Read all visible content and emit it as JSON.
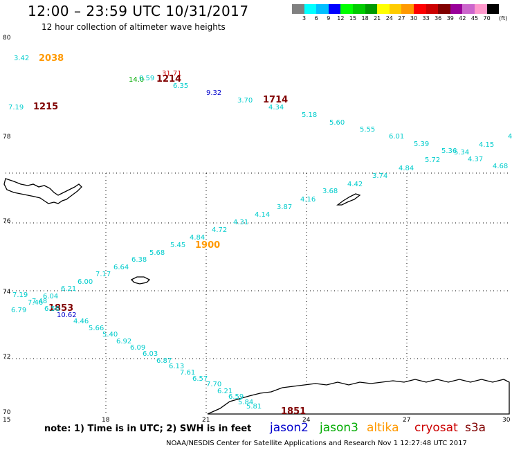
{
  "header": {
    "title": "12:00 – 23:59 UTC 10/31/2017",
    "subtitle": "12 hour collection of altimeter wave heights"
  },
  "scale": {
    "colors": [
      "#808080",
      "#00ffff",
      "#00bfff",
      "#0000ff",
      "#00ff00",
      "#00cc00",
      "#009900",
      "#ffff00",
      "#ffcc00",
      "#ff9900",
      "#ff0000",
      "#cc0000",
      "#800000",
      "#990099",
      "#cc66cc",
      "#ff99cc",
      "#000000"
    ],
    "labels": [
      "3",
      "6",
      "9",
      "12",
      "15",
      "18",
      "21",
      "24",
      "27",
      "30",
      "33",
      "36",
      "39",
      "42",
      "45",
      "70",
      "(ft)"
    ]
  },
  "axes": {
    "lat_labels": [
      "80",
      "78",
      "76",
      "74",
      "72",
      "70"
    ],
    "lon_labels": [
      "15",
      "18",
      "21",
      "24",
      "27",
      "30"
    ]
  },
  "colors": {
    "jason2": "#0000cc",
    "jason3": "#00aa00",
    "altika": "#ff9900",
    "cryosat": "#cc0000",
    "s3a": "#800000",
    "swh": "#00cccc"
  },
  "time_labels": [
    {
      "text": "2038",
      "sat": "altika"
    },
    {
      "text": "1214",
      "sat": "s3a"
    },
    {
      "text": "1215",
      "sat": "s3a"
    },
    {
      "text": "1714",
      "sat": "s3a"
    },
    {
      "text": "1900",
      "sat": "altika"
    },
    {
      "text": "1853",
      "sat": "s3a"
    },
    {
      "text": "1851",
      "sat": "s3a"
    }
  ],
  "swh": [
    {
      "v": "3.42",
      "sat": "swh"
    },
    {
      "v": "14.0",
      "sat": "jason3"
    },
    {
      "v": "0.59",
      "sat": "swh"
    },
    {
      "v": "31.71",
      "sat": "cryosat"
    },
    {
      "v": "6.35",
      "sat": "swh"
    },
    {
      "v": "9.32",
      "sat": "jason2"
    },
    {
      "v": "3.70",
      "sat": "swh"
    },
    {
      "v": "4.34",
      "sat": "swh"
    },
    {
      "v": "7.19",
      "sat": "swh"
    },
    {
      "v": "5.18",
      "sat": "swh"
    },
    {
      "v": "5.60",
      "sat": "swh"
    },
    {
      "v": "5.55",
      "sat": "swh"
    },
    {
      "v": "6.01",
      "sat": "swh"
    },
    {
      "v": "5.39",
      "sat": "swh"
    },
    {
      "v": "5.36",
      "sat": "swh"
    },
    {
      "v": "5.34",
      "sat": "swh"
    },
    {
      "v": "4.15",
      "sat": "swh"
    },
    {
      "v": "4",
      "sat": "swh"
    },
    {
      "v": "4.37",
      "sat": "swh"
    },
    {
      "v": "4.68",
      "sat": "swh"
    },
    {
      "v": "5.72",
      "sat": "swh"
    },
    {
      "v": "4.84",
      "sat": "swh"
    },
    {
      "v": "3.74",
      "sat": "swh"
    },
    {
      "v": "4.42",
      "sat": "swh"
    },
    {
      "v": "3.68",
      "sat": "swh"
    },
    {
      "v": "4.16",
      "sat": "swh"
    },
    {
      "v": "3.87",
      "sat": "swh"
    },
    {
      "v": "4.14",
      "sat": "swh"
    },
    {
      "v": "4.31",
      "sat": "swh"
    },
    {
      "v": "4.72",
      "sat": "swh"
    },
    {
      "v": "4.84",
      "sat": "swh"
    },
    {
      "v": "5.45",
      "sat": "swh"
    },
    {
      "v": "5.68",
      "sat": "swh"
    },
    {
      "v": "6.38",
      "sat": "swh"
    },
    {
      "v": "6.64",
      "sat": "swh"
    },
    {
      "v": "7.17",
      "sat": "swh"
    },
    {
      "v": "6.00",
      "sat": "swh"
    },
    {
      "v": "6.21",
      "sat": "swh"
    },
    {
      "v": "6.04",
      "sat": "swh"
    },
    {
      "v": "7.19",
      "sat": "swh"
    },
    {
      "v": "7.46",
      "sat": "swh"
    },
    {
      "v": "7.48",
      "sat": "swh"
    },
    {
      "v": "6.79",
      "sat": "swh"
    },
    {
      "v": "6.56",
      "sat": "swh"
    },
    {
      "v": "10.62",
      "sat": "jason2"
    },
    {
      "v": "4.46",
      "sat": "swh"
    },
    {
      "v": "5.66",
      "sat": "swh"
    },
    {
      "v": "5.40",
      "sat": "swh"
    },
    {
      "v": "6.92",
      "sat": "swh"
    },
    {
      "v": "6.09",
      "sat": "swh"
    },
    {
      "v": "6.03",
      "sat": "swh"
    },
    {
      "v": "6.87",
      "sat": "swh"
    },
    {
      "v": "6.13",
      "sat": "swh"
    },
    {
      "v": "7.61",
      "sat": "swh"
    },
    {
      "v": "6.57",
      "sat": "swh"
    },
    {
      "v": "7.70",
      "sat": "swh"
    },
    {
      "v": "6.21",
      "sat": "swh"
    },
    {
      "v": "6.59",
      "sat": "swh"
    },
    {
      "v": "5.84",
      "sat": "swh"
    },
    {
      "v": "5.81",
      "sat": "swh"
    }
  ],
  "footer": {
    "note": "note:  1) Time is in UTC;  2) SWH is in feet",
    "sat_names": {
      "jason2": "jason2",
      "jason3": "jason3",
      "altika": "altika",
      "cryosat": "cryosat",
      "s3a": "s3a"
    },
    "credit": "NOAA/NESDIS Center for Satellite Applications and Research     Nov  1 12:27:48 UTC 2017"
  }
}
